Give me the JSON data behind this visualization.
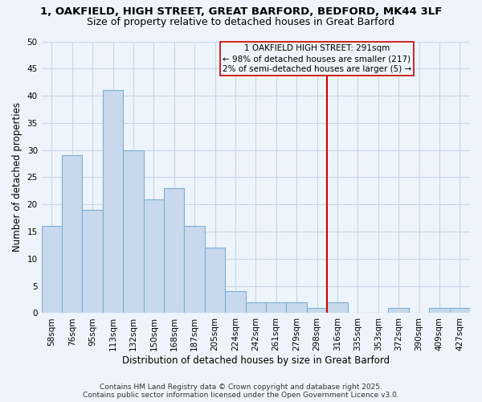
{
  "title": "1, OAKFIELD, HIGH STREET, GREAT BARFORD, BEDFORD, MK44 3LF",
  "subtitle": "Size of property relative to detached houses in Great Barford",
  "xlabel": "Distribution of detached houses by size in Great Barford",
  "ylabel": "Number of detached properties",
  "bar_color": "#c8d9ed",
  "bar_edge_color": "#7bafd4",
  "grid_color": "#c5d5e8",
  "background_color": "#eef4fb",
  "categories": [
    "58sqm",
    "76sqm",
    "95sqm",
    "113sqm",
    "132sqm",
    "150sqm",
    "168sqm",
    "187sqm",
    "205sqm",
    "224sqm",
    "242sqm",
    "261sqm",
    "279sqm",
    "298sqm",
    "316sqm",
    "335sqm",
    "353sqm",
    "372sqm",
    "390sqm",
    "409sqm",
    "427sqm"
  ],
  "values": [
    16,
    29,
    19,
    41,
    30,
    21,
    23,
    16,
    12,
    4,
    2,
    2,
    2,
    1,
    2,
    0,
    0,
    1,
    0,
    1,
    1
  ],
  "ylim": [
    0,
    50
  ],
  "yticks": [
    0,
    5,
    10,
    15,
    20,
    25,
    30,
    35,
    40,
    45,
    50
  ],
  "vline_x": 13.5,
  "vline_color": "#cc0000",
  "annotation_title": "1 OAKFIELD HIGH STREET: 291sqm",
  "annotation_line1": "← 98% of detached houses are smaller (217)",
  "annotation_line2": "2% of semi-detached houses are larger (5) →",
  "footer1": "Contains HM Land Registry data © Crown copyright and database right 2025.",
  "footer2": "Contains public sector information licensed under the Open Government Licence v3.0.",
  "title_fontsize": 9.5,
  "subtitle_fontsize": 9,
  "axis_label_fontsize": 8.5,
  "tick_fontsize": 7.5,
  "annotation_fontsize": 7.5,
  "footer_fontsize": 6.5
}
